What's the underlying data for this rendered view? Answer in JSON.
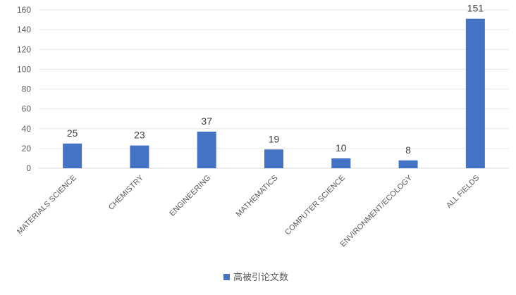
{
  "chart_data": {
    "type": "bar",
    "categories": [
      "MATERIALS SCIENCE",
      "CHEMISTRY",
      "ENGINEERING",
      "MATHEMATICS",
      "COMPUTER SCIENCE",
      "ENVIRONMENT/ECOLOGY",
      "ALL FIELDS"
    ],
    "series": [
      {
        "name": "高被引论文数",
        "values": [
          25,
          23,
          37,
          19,
          10,
          8,
          151
        ]
      }
    ],
    "ylim": [
      0,
      160
    ],
    "yticks": [
      0,
      20,
      40,
      60,
      80,
      100,
      120,
      140,
      160
    ],
    "grid": true,
    "data_labels": true,
    "legend_position": "bottom",
    "bar_color": "#4472C4"
  }
}
